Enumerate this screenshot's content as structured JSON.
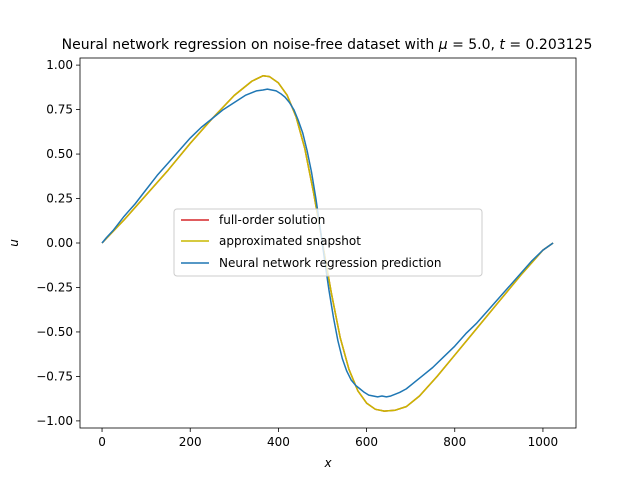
{
  "chart_data": {
    "type": "line",
    "title": "Neural network regression on noise-free dataset with μ = 5.0, t = 0.203125",
    "title_parts": {
      "prefix": "Neural network regression on noise-free dataset with ",
      "mu_symbol": "μ",
      "mu_eq": " = 5.0, ",
      "t_symbol": "t",
      "t_eq": " = 0.203125"
    },
    "xlabel": "x",
    "ylabel": "u",
    "xlim": [
      -50,
      1075
    ],
    "ylim": [
      -1.04,
      1.04
    ],
    "x_ticks": [
      0,
      200,
      400,
      600,
      800,
      1000
    ],
    "x_tick_labels": [
      "0",
      "200",
      "400",
      "600",
      "800",
      "1000"
    ],
    "y_ticks": [
      -1.0,
      -0.75,
      -0.5,
      -0.25,
      0.0,
      0.25,
      0.5,
      0.75,
      1.0
    ],
    "y_tick_labels": [
      "−1.00",
      "−0.75",
      "−0.50",
      "−0.25",
      "0.00",
      "0.25",
      "0.50",
      "0.75",
      "1.00"
    ],
    "grid": false,
    "legend_position": "center-left",
    "series": [
      {
        "name": "full-order solution",
        "color": "#d62728",
        "x": [
          0,
          50,
          100,
          150,
          200,
          250,
          300,
          340,
          365,
          380,
          400,
          420,
          440,
          460,
          480,
          500,
          520,
          540,
          560,
          580,
          600,
          620,
          640,
          665,
          690,
          720,
          760,
          800,
          850,
          900,
          950,
          1000,
          1023
        ],
        "y": [
          0.0,
          0.13,
          0.27,
          0.41,
          0.56,
          0.7,
          0.83,
          0.91,
          0.94,
          0.935,
          0.9,
          0.83,
          0.71,
          0.53,
          0.28,
          0.0,
          -0.28,
          -0.53,
          -0.71,
          -0.83,
          -0.9,
          -0.935,
          -0.945,
          -0.94,
          -0.92,
          -0.86,
          -0.75,
          -0.63,
          -0.48,
          -0.33,
          -0.18,
          -0.04,
          0.0
        ]
      },
      {
        "name": "approximated snapshot",
        "color": "#c9b800",
        "x": [
          0,
          50,
          100,
          150,
          200,
          250,
          300,
          340,
          365,
          380,
          400,
          420,
          440,
          460,
          480,
          500,
          520,
          540,
          560,
          580,
          600,
          620,
          640,
          665,
          690,
          720,
          760,
          800,
          850,
          900,
          950,
          1000,
          1023
        ],
        "y": [
          0.0,
          0.13,
          0.27,
          0.41,
          0.56,
          0.7,
          0.83,
          0.91,
          0.94,
          0.935,
          0.9,
          0.83,
          0.71,
          0.53,
          0.28,
          0.0,
          -0.28,
          -0.53,
          -0.71,
          -0.83,
          -0.9,
          -0.935,
          -0.945,
          -0.94,
          -0.92,
          -0.86,
          -0.75,
          -0.63,
          -0.48,
          -0.33,
          -0.18,
          -0.04,
          0.0
        ]
      },
      {
        "name": "Neural network regression prediction",
        "color": "#1f77b4",
        "x": [
          0,
          10,
          25,
          50,
          75,
          100,
          125,
          150,
          175,
          200,
          225,
          250,
          275,
          300,
          325,
          350,
          365,
          375,
          385,
          395,
          405,
          415,
          425,
          435,
          445,
          455,
          465,
          475,
          485,
          495,
          505,
          515,
          525,
          535,
          545,
          555,
          565,
          575,
          585,
          595,
          605,
          615,
          625,
          635,
          645,
          655,
          665,
          675,
          690,
          705,
          725,
          750,
          775,
          800,
          825,
          850,
          875,
          900,
          925,
          950,
          975,
          1000,
          1023
        ],
        "y": [
          0.0,
          0.03,
          0.07,
          0.15,
          0.22,
          0.3,
          0.38,
          0.45,
          0.52,
          0.59,
          0.65,
          0.7,
          0.75,
          0.79,
          0.83,
          0.855,
          0.86,
          0.865,
          0.86,
          0.855,
          0.84,
          0.82,
          0.79,
          0.75,
          0.69,
          0.62,
          0.52,
          0.4,
          0.25,
          0.08,
          -0.1,
          -0.27,
          -0.42,
          -0.55,
          -0.65,
          -0.72,
          -0.77,
          -0.8,
          -0.82,
          -0.84,
          -0.855,
          -0.86,
          -0.865,
          -0.86,
          -0.865,
          -0.86,
          -0.85,
          -0.84,
          -0.82,
          -0.79,
          -0.75,
          -0.7,
          -0.64,
          -0.58,
          -0.51,
          -0.45,
          -0.38,
          -0.31,
          -0.24,
          -0.17,
          -0.1,
          -0.04,
          0.0
        ]
      }
    ]
  }
}
